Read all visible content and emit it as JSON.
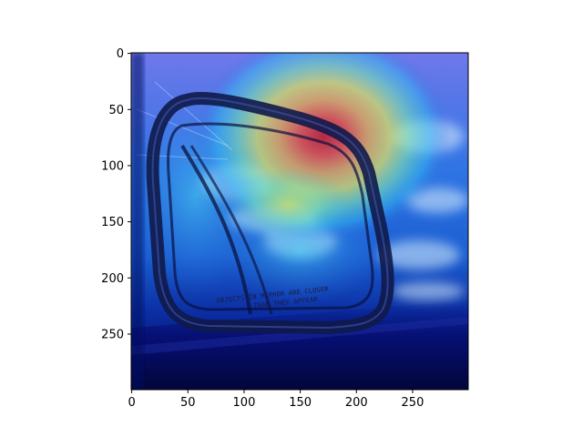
{
  "image": {
    "description_text": {
      "line1": "OBJECTS IN MIRROR ARE CLOSER",
      "line2": "THAN THEY APPEAR"
    }
  },
  "axes": {
    "x_ticks": [
      "0",
      "50",
      "100",
      "150",
      "200",
      "250"
    ],
    "y_ticks": [
      "0",
      "50",
      "100",
      "150",
      "200",
      "250"
    ],
    "x_values": [
      0,
      50,
      100,
      150,
      200,
      250
    ],
    "y_values": [
      0,
      50,
      100,
      150,
      200,
      250
    ],
    "x_range": [
      0,
      299
    ],
    "y_range": [
      0,
      299
    ]
  },
  "heatmap": {
    "colormap": "jet",
    "peak": [
      160,
      75
    ]
  }
}
